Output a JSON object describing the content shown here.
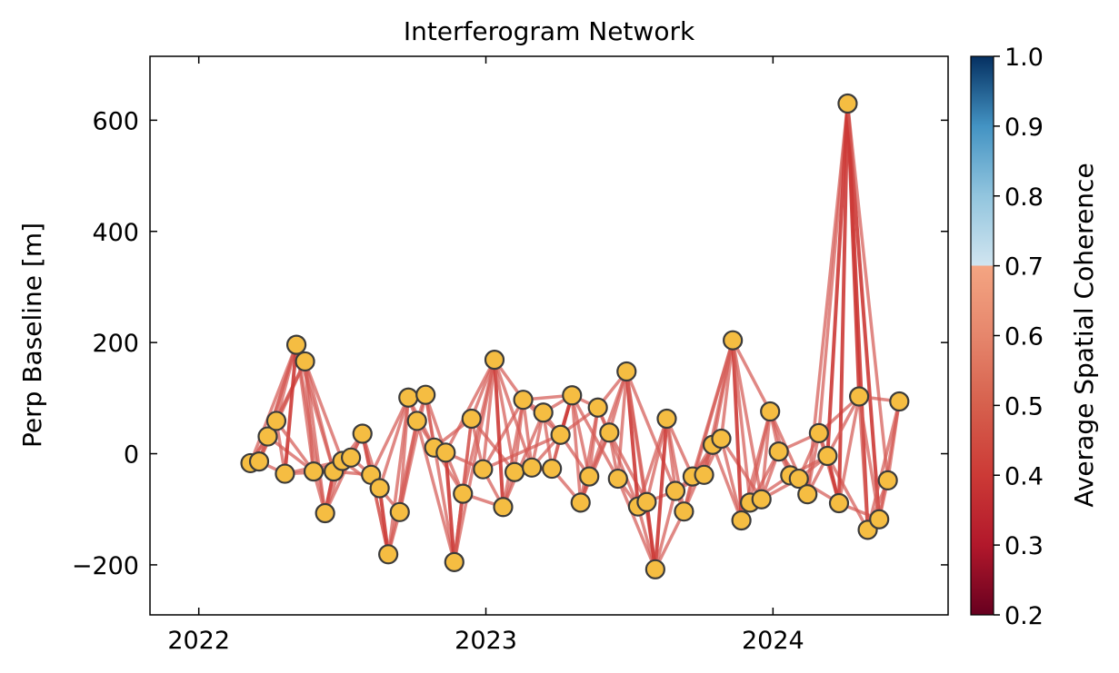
{
  "chart_data": {
    "type": "network-scatter",
    "title": "Interferogram Network",
    "xlabel": "",
    "ylabel": "Perp Baseline [m]",
    "xlim": [
      2021.83,
      2024.61
    ],
    "ylim": [
      -290,
      715
    ],
    "xticks": [
      2022,
      2023,
      2024
    ],
    "xtick_labels": [
      "2022",
      "2023",
      "2024"
    ],
    "yticks": [
      -200,
      0,
      200,
      400,
      600
    ],
    "ytick_labels": [
      "−200",
      "0",
      "200",
      "400",
      "600"
    ],
    "colorbar": {
      "label": "Average Spatial Coherence",
      "range": [
        0.2,
        1.0
      ],
      "ticks": [
        0.2,
        0.3,
        0.4,
        0.5,
        0.6,
        0.7,
        0.8,
        0.9,
        1.0
      ],
      "tick_labels": [
        "0.2",
        "0.3",
        "0.4",
        "0.5",
        "0.6",
        "0.7",
        "0.8",
        "0.9",
        "1.0"
      ],
      "cmap": "RdBu",
      "cmap_stops": [
        [
          0.2,
          "#67001f"
        ],
        [
          0.3,
          "#b2182b"
        ],
        [
          0.4,
          "#cc3a36"
        ],
        [
          0.5,
          "#d6604d"
        ],
        [
          0.6,
          "#e6866c"
        ],
        [
          0.7,
          "#f4a582"
        ],
        [
          0.7,
          "#d1e5f0"
        ],
        [
          0.8,
          "#92c5de"
        ],
        [
          0.9,
          "#4393c3"
        ],
        [
          1.0,
          "#053061"
        ]
      ]
    },
    "point_fill": "#f5bd42",
    "point_edge": "#3b3b3b",
    "edge_color": "#d45a55",
    "edge_color_strong": "#cc3a36",
    "acquisitions": [
      {
        "date": 2022.18,
        "bperp": -17
      },
      {
        "date": 2022.21,
        "bperp": -14
      },
      {
        "date": 2022.24,
        "bperp": 31
      },
      {
        "date": 2022.27,
        "bperp": 59
      },
      {
        "date": 2022.3,
        "bperp": -36
      },
      {
        "date": 2022.34,
        "bperp": 196
      },
      {
        "date": 2022.37,
        "bperp": 166
      },
      {
        "date": 2022.4,
        "bperp": -32
      },
      {
        "date": 2022.44,
        "bperp": -107
      },
      {
        "date": 2022.47,
        "bperp": -32
      },
      {
        "date": 2022.5,
        "bperp": -13
      },
      {
        "date": 2022.53,
        "bperp": -7
      },
      {
        "date": 2022.57,
        "bperp": 36
      },
      {
        "date": 2022.6,
        "bperp": -38
      },
      {
        "date": 2022.63,
        "bperp": -62
      },
      {
        "date": 2022.66,
        "bperp": -181
      },
      {
        "date": 2022.7,
        "bperp": -105
      },
      {
        "date": 2022.73,
        "bperp": 101
      },
      {
        "date": 2022.76,
        "bperp": 59
      },
      {
        "date": 2022.79,
        "bperp": 106
      },
      {
        "date": 2022.82,
        "bperp": 11
      },
      {
        "date": 2022.86,
        "bperp": 2
      },
      {
        "date": 2022.89,
        "bperp": -195
      },
      {
        "date": 2022.92,
        "bperp": -72
      },
      {
        "date": 2022.95,
        "bperp": 63
      },
      {
        "date": 2022.99,
        "bperp": -28
      },
      {
        "date": 2023.03,
        "bperp": 169
      },
      {
        "date": 2023.06,
        "bperp": -96
      },
      {
        "date": 2023.1,
        "bperp": -33
      },
      {
        "date": 2023.13,
        "bperp": 97
      },
      {
        "date": 2023.16,
        "bperp": -25
      },
      {
        "date": 2023.2,
        "bperp": 74
      },
      {
        "date": 2023.23,
        "bperp": -27
      },
      {
        "date": 2023.26,
        "bperp": 34
      },
      {
        "date": 2023.3,
        "bperp": 105
      },
      {
        "date": 2023.33,
        "bperp": -88
      },
      {
        "date": 2023.36,
        "bperp": -41
      },
      {
        "date": 2023.39,
        "bperp": 83
      },
      {
        "date": 2023.43,
        "bperp": 38
      },
      {
        "date": 2023.46,
        "bperp": -45
      },
      {
        "date": 2023.49,
        "bperp": 148
      },
      {
        "date": 2023.53,
        "bperp": -95
      },
      {
        "date": 2023.56,
        "bperp": -87
      },
      {
        "date": 2023.59,
        "bperp": -208
      },
      {
        "date": 2023.63,
        "bperp": 63
      },
      {
        "date": 2023.66,
        "bperp": -67
      },
      {
        "date": 2023.69,
        "bperp": -104
      },
      {
        "date": 2023.72,
        "bperp": -41
      },
      {
        "date": 2023.76,
        "bperp": -38
      },
      {
        "date": 2023.79,
        "bperp": 16
      },
      {
        "date": 2023.82,
        "bperp": 27
      },
      {
        "date": 2023.86,
        "bperp": 204
      },
      {
        "date": 2023.89,
        "bperp": -120
      },
      {
        "date": 2023.92,
        "bperp": -88
      },
      {
        "date": 2023.96,
        "bperp": -82
      },
      {
        "date": 2023.99,
        "bperp": 76
      },
      {
        "date": 2024.02,
        "bperp": 4
      },
      {
        "date": 2024.06,
        "bperp": -39
      },
      {
        "date": 2024.09,
        "bperp": -45
      },
      {
        "date": 2024.12,
        "bperp": -73
      },
      {
        "date": 2024.16,
        "bperp": 37
      },
      {
        "date": 2024.19,
        "bperp": -4
      },
      {
        "date": 2024.23,
        "bperp": -89
      },
      {
        "date": 2024.26,
        "bperp": 630
      },
      {
        "date": 2024.3,
        "bperp": 103
      },
      {
        "date": 2024.33,
        "bperp": -137
      },
      {
        "date": 2024.37,
        "bperp": -118
      },
      {
        "date": 2024.4,
        "bperp": -48
      },
      {
        "date": 2024.44,
        "bperp": 94
      }
    ],
    "pairs": [
      [
        0,
        1
      ],
      [
        0,
        2
      ],
      [
        0,
        3
      ],
      [
        0,
        5
      ],
      [
        1,
        2
      ],
      [
        1,
        3
      ],
      [
        1,
        4
      ],
      [
        1,
        5
      ],
      [
        1,
        6
      ],
      [
        2,
        3
      ],
      [
        2,
        5
      ],
      [
        2,
        6
      ],
      [
        2,
        7
      ],
      [
        3,
        5
      ],
      [
        3,
        6
      ],
      [
        3,
        4
      ],
      [
        4,
        5
      ],
      [
        4,
        9
      ],
      [
        4,
        10
      ],
      [
        5,
        6
      ],
      [
        5,
        7
      ],
      [
        5,
        8
      ],
      [
        5,
        9
      ],
      [
        6,
        7
      ],
      [
        6,
        8
      ],
      [
        6,
        9
      ],
      [
        6,
        10
      ],
      [
        7,
        8
      ],
      [
        7,
        9
      ],
      [
        7,
        11
      ],
      [
        8,
        9
      ],
      [
        8,
        10
      ],
      [
        8,
        12
      ],
      [
        9,
        10
      ],
      [
        9,
        11
      ],
      [
        9,
        13
      ],
      [
        10,
        11
      ],
      [
        10,
        12
      ],
      [
        10,
        14
      ],
      [
        11,
        12
      ],
      [
        11,
        13
      ],
      [
        12,
        13
      ],
      [
        12,
        14
      ],
      [
        12,
        15
      ],
      [
        13,
        14
      ],
      [
        13,
        15
      ],
      [
        13,
        17
      ],
      [
        14,
        15
      ],
      [
        14,
        16
      ],
      [
        14,
        17
      ],
      [
        15,
        16
      ],
      [
        15,
        17
      ],
      [
        15,
        18
      ],
      [
        16,
        17
      ],
      [
        16,
        18
      ],
      [
        16,
        19
      ],
      [
        17,
        18
      ],
      [
        17,
        19
      ],
      [
        17,
        20
      ],
      [
        18,
        19
      ],
      [
        18,
        20
      ],
      [
        18,
        22
      ],
      [
        19,
        20
      ],
      [
        19,
        21
      ],
      [
        19,
        22
      ],
      [
        20,
        21
      ],
      [
        20,
        23
      ],
      [
        20,
        24
      ],
      [
        21,
        22
      ],
      [
        21,
        23
      ],
      [
        21,
        25
      ],
      [
        21,
        26
      ],
      [
        22,
        23
      ],
      [
        22,
        24
      ],
      [
        22,
        26
      ],
      [
        23,
        24
      ],
      [
        23,
        26
      ],
      [
        23,
        27
      ],
      [
        24,
        25
      ],
      [
        24,
        26
      ],
      [
        24,
        28
      ],
      [
        25,
        26
      ],
      [
        25,
        27
      ],
      [
        25,
        29
      ],
      [
        25,
        33
      ],
      [
        26,
        27
      ],
      [
        26,
        28
      ],
      [
        26,
        29
      ],
      [
        26,
        30
      ],
      [
        27,
        28
      ],
      [
        27,
        29
      ],
      [
        27,
        31
      ],
      [
        28,
        29
      ],
      [
        28,
        30
      ],
      [
        28,
        32
      ],
      [
        29,
        30
      ],
      [
        29,
        31
      ],
      [
        29,
        34
      ],
      [
        30,
        31
      ],
      [
        30,
        32
      ],
      [
        30,
        33
      ],
      [
        31,
        32
      ],
      [
        31,
        33
      ],
      [
        31,
        34
      ],
      [
        32,
        33
      ],
      [
        32,
        35
      ],
      [
        32,
        34
      ],
      [
        33,
        34
      ],
      [
        33,
        36
      ],
      [
        33,
        37
      ],
      [
        34,
        35
      ],
      [
        34,
        36
      ],
      [
        34,
        37
      ],
      [
        34,
        39
      ],
      [
        35,
        36
      ],
      [
        35,
        37
      ],
      [
        35,
        38
      ],
      [
        36,
        37
      ],
      [
        36,
        38
      ],
      [
        36,
        40
      ],
      [
        37,
        38
      ],
      [
        37,
        40
      ],
      [
        37,
        41
      ],
      [
        38,
        39
      ],
      [
        38,
        40
      ],
      [
        38,
        42
      ],
      [
        39,
        40
      ],
      [
        39,
        41
      ],
      [
        39,
        43
      ],
      [
        40,
        41
      ],
      [
        40,
        42
      ],
      [
        40,
        43
      ],
      [
        40,
        45
      ],
      [
        41,
        42
      ],
      [
        41,
        43
      ],
      [
        41,
        44
      ],
      [
        42,
        43
      ],
      [
        42,
        44
      ],
      [
        42,
        45
      ],
      [
        43,
        44
      ],
      [
        43,
        45
      ],
      [
        43,
        46
      ],
      [
        44,
        45
      ],
      [
        44,
        46
      ],
      [
        44,
        47
      ],
      [
        45,
        46
      ],
      [
        45,
        47
      ],
      [
        45,
        48
      ],
      [
        46,
        47
      ],
      [
        46,
        49
      ],
      [
        46,
        51
      ],
      [
        47,
        48
      ],
      [
        47,
        49
      ],
      [
        47,
        50
      ],
      [
        48,
        49
      ],
      [
        48,
        50
      ],
      [
        48,
        51
      ],
      [
        49,
        50
      ],
      [
        49,
        51
      ],
      [
        49,
        52
      ],
      [
        50,
        51
      ],
      [
        50,
        52
      ],
      [
        50,
        54
      ],
      [
        51,
        52
      ],
      [
        51,
        53
      ],
      [
        51,
        54
      ],
      [
        51,
        55
      ],
      [
        52,
        53
      ],
      [
        52,
        55
      ],
      [
        52,
        56
      ],
      [
        53,
        54
      ],
      [
        53,
        55
      ],
      [
        53,
        57
      ],
      [
        54,
        55
      ],
      [
        54,
        56
      ],
      [
        54,
        58
      ],
      [
        55,
        56
      ],
      [
        55,
        57
      ],
      [
        55,
        59
      ],
      [
        56,
        57
      ],
      [
        56,
        58
      ],
      [
        56,
        60
      ],
      [
        57,
        58
      ],
      [
        57,
        59
      ],
      [
        57,
        61
      ],
      [
        58,
        59
      ],
      [
        58,
        60
      ],
      [
        58,
        62
      ],
      [
        59,
        60
      ],
      [
        59,
        61
      ],
      [
        59,
        63
      ],
      [
        60,
        61
      ],
      [
        60,
        62
      ],
      [
        60,
        63
      ],
      [
        60,
        64
      ],
      [
        61,
        62
      ],
      [
        61,
        63
      ],
      [
        61,
        65
      ],
      [
        62,
        63
      ],
      [
        62,
        64
      ],
      [
        62,
        66
      ],
      [
        63,
        64
      ],
      [
        63,
        65
      ],
      [
        63,
        66
      ],
      [
        63,
        67
      ],
      [
        64,
        65
      ],
      [
        64,
        66
      ],
      [
        64,
        68
      ],
      [
        65,
        66
      ],
      [
        65,
        67
      ],
      [
        65,
        68
      ],
      [
        66,
        67
      ],
      [
        66,
        68
      ],
      [
        67,
        68
      ],
      [
        47,
        51
      ],
      [
        29,
        33
      ],
      [
        3,
        7
      ],
      [
        58,
        61
      ],
      [
        61,
        64
      ]
    ],
    "strong_pairs": [
      [
        5,
        6
      ],
      [
        4,
        5
      ],
      [
        12,
        13
      ],
      [
        14,
        15
      ],
      [
        63,
        64
      ],
      [
        63,
        62
      ],
      [
        63,
        61
      ],
      [
        63,
        66
      ],
      [
        63,
        65
      ],
      [
        43,
        44
      ],
      [
        43,
        42
      ],
      [
        40,
        41
      ],
      [
        26,
        27
      ],
      [
        21,
        22
      ],
      [
        22,
        23
      ],
      [
        33,
        34
      ],
      [
        51,
        52
      ],
      [
        52,
        53
      ],
      [
        61,
        62
      ],
      [
        35,
        36
      ],
      [
        8,
        9
      ]
    ]
  }
}
